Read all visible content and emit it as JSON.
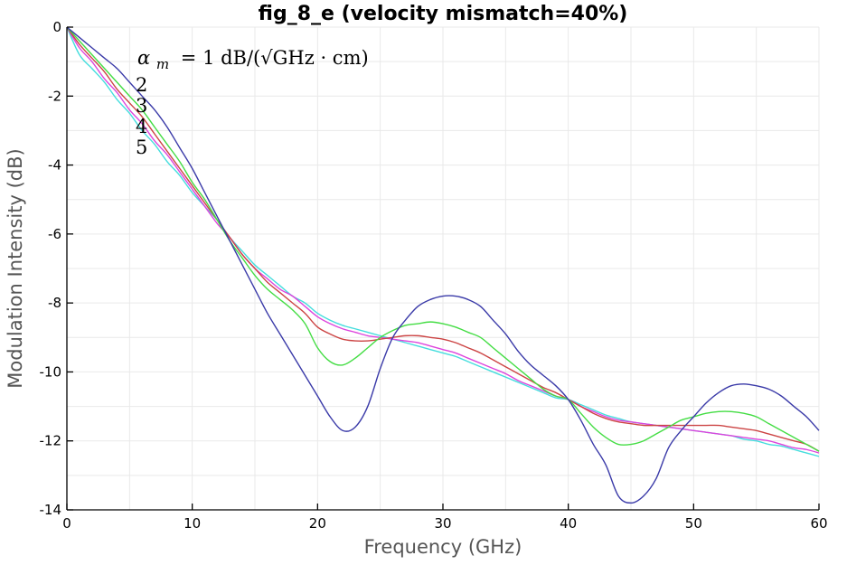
{
  "chart_data": {
    "type": "line",
    "title": "fig_8_e (velocity mismatch=40%)",
    "xlabel": "Frequency (GHz)",
    "ylabel": "Modulation Intensity (dB)",
    "xlim": [
      0,
      60
    ],
    "ylim": [
      -14,
      0
    ],
    "xticks": [
      0,
      10,
      20,
      30,
      40,
      50,
      60
    ],
    "yticks": [
      0,
      -2,
      -4,
      -6,
      -8,
      -10,
      -12,
      -14
    ],
    "grid": true,
    "legend": "none",
    "annotations": {
      "alpha_symbol": "α",
      "alpha_sub": "m",
      "alpha_rest": "= 1 dB/(√GHz · cm)",
      "labels": [
        "2",
        "3",
        "4",
        "5"
      ]
    },
    "x": [
      0,
      1,
      2,
      3,
      4,
      5,
      6,
      7,
      8,
      9,
      10,
      11,
      12,
      13,
      14,
      15,
      16,
      17,
      18,
      19,
      20,
      21,
      22,
      23,
      24,
      25,
      26,
      27,
      28,
      29,
      30,
      31,
      32,
      33,
      34,
      35,
      36,
      37,
      38,
      39,
      40,
      41,
      42,
      43,
      44,
      45,
      46,
      47,
      48,
      49,
      50,
      51,
      52,
      53,
      54,
      55,
      56,
      57,
      58,
      59,
      60
    ],
    "series": [
      {
        "color": "#3a3aa8",
        "values": [
          0,
          -0.3,
          -0.6,
          -0.9,
          -1.2,
          -1.6,
          -2.0,
          -2.4,
          -2.9,
          -3.5,
          -4.1,
          -4.8,
          -5.5,
          -6.2,
          -6.9,
          -7.6,
          -8.3,
          -8.9,
          -9.5,
          -10.1,
          -10.7,
          -11.3,
          -11.7,
          -11.6,
          -11.0,
          -9.9,
          -9.0,
          -8.5,
          -8.1,
          -7.9,
          -7.8,
          -7.8,
          -7.9,
          -8.1,
          -8.5,
          -8.9,
          -9.4,
          -9.8,
          -10.1,
          -10.4,
          -10.8,
          -11.4,
          -12.1,
          -12.7,
          -13.6,
          -13.8,
          -13.6,
          -13.1,
          -12.2,
          -11.7,
          -11.3,
          -10.9,
          -10.6,
          -10.4,
          -10.35,
          -10.4,
          -10.5,
          -10.7,
          -11.0,
          -11.3,
          -11.7
        ]
      },
      {
        "color": "#44dd44",
        "values": [
          0,
          -0.4,
          -0.8,
          -1.2,
          -1.6,
          -2.0,
          -2.4,
          -2.9,
          -3.4,
          -3.9,
          -4.5,
          -5.0,
          -5.6,
          -6.2,
          -6.7,
          -7.2,
          -7.6,
          -7.9,
          -8.2,
          -8.6,
          -9.3,
          -9.7,
          -9.8,
          -9.6,
          -9.3,
          -9.0,
          -8.8,
          -8.65,
          -8.6,
          -8.55,
          -8.6,
          -8.7,
          -8.85,
          -9.0,
          -9.3,
          -9.6,
          -9.9,
          -10.2,
          -10.5,
          -10.7,
          -10.8,
          -11.2,
          -11.6,
          -11.9,
          -12.1,
          -12.1,
          -12.0,
          -11.8,
          -11.6,
          -11.4,
          -11.3,
          -11.2,
          -11.15,
          -11.15,
          -11.2,
          -11.3,
          -11.5,
          -11.7,
          -11.9,
          -12.1,
          -12.3
        ]
      },
      {
        "color": "#cc4444",
        "values": [
          0,
          -0.5,
          -0.9,
          -1.3,
          -1.8,
          -2.2,
          -2.6,
          -3.1,
          -3.6,
          -4.1,
          -4.6,
          -5.1,
          -5.6,
          -6.1,
          -6.6,
          -7.0,
          -7.4,
          -7.7,
          -8.0,
          -8.3,
          -8.7,
          -8.9,
          -9.05,
          -9.1,
          -9.1,
          -9.05,
          -9.0,
          -8.95,
          -8.95,
          -9.0,
          -9.05,
          -9.15,
          -9.3,
          -9.45,
          -9.65,
          -9.85,
          -10.05,
          -10.25,
          -10.45,
          -10.6,
          -10.8,
          -11.0,
          -11.2,
          -11.35,
          -11.45,
          -11.5,
          -11.55,
          -11.55,
          -11.55,
          -11.55,
          -11.55,
          -11.55,
          -11.55,
          -11.6,
          -11.65,
          -11.7,
          -11.8,
          -11.9,
          -12.0,
          -12.1,
          -12.3
        ]
      },
      {
        "color": "#dd44dd",
        "values": [
          0,
          -0.6,
          -1.0,
          -1.5,
          -1.9,
          -2.4,
          -2.8,
          -3.3,
          -3.7,
          -4.2,
          -4.7,
          -5.2,
          -5.7,
          -6.1,
          -6.6,
          -7.0,
          -7.3,
          -7.6,
          -7.8,
          -8.1,
          -8.4,
          -8.6,
          -8.75,
          -8.85,
          -8.95,
          -9.0,
          -9.05,
          -9.1,
          -9.15,
          -9.25,
          -9.35,
          -9.45,
          -9.6,
          -9.75,
          -9.9,
          -10.05,
          -10.25,
          -10.4,
          -10.55,
          -10.7,
          -10.8,
          -11.0,
          -11.15,
          -11.3,
          -11.4,
          -11.45,
          -11.5,
          -11.55,
          -11.6,
          -11.65,
          -11.7,
          -11.75,
          -11.8,
          -11.85,
          -11.9,
          -11.95,
          -12.0,
          -12.1,
          -12.2,
          -12.25,
          -12.35
        ]
      },
      {
        "color": "#44dddd",
        "values": [
          0,
          -0.8,
          -1.2,
          -1.6,
          -2.1,
          -2.5,
          -3.0,
          -3.4,
          -3.9,
          -4.3,
          -4.8,
          -5.2,
          -5.6,
          -6.1,
          -6.5,
          -6.9,
          -7.2,
          -7.5,
          -7.8,
          -8.0,
          -8.3,
          -8.5,
          -8.65,
          -8.75,
          -8.85,
          -8.95,
          -9.05,
          -9.15,
          -9.25,
          -9.35,
          -9.45,
          -9.55,
          -9.7,
          -9.85,
          -10.0,
          -10.15,
          -10.3,
          -10.45,
          -10.6,
          -10.75,
          -10.8,
          -10.95,
          -11.1,
          -11.25,
          -11.35,
          -11.45,
          -11.5,
          -11.55,
          -11.6,
          -11.65,
          -11.7,
          -11.75,
          -11.8,
          -11.85,
          -11.95,
          -12.0,
          -12.1,
          -12.15,
          -12.25,
          -12.35,
          -12.45
        ]
      }
    ]
  }
}
